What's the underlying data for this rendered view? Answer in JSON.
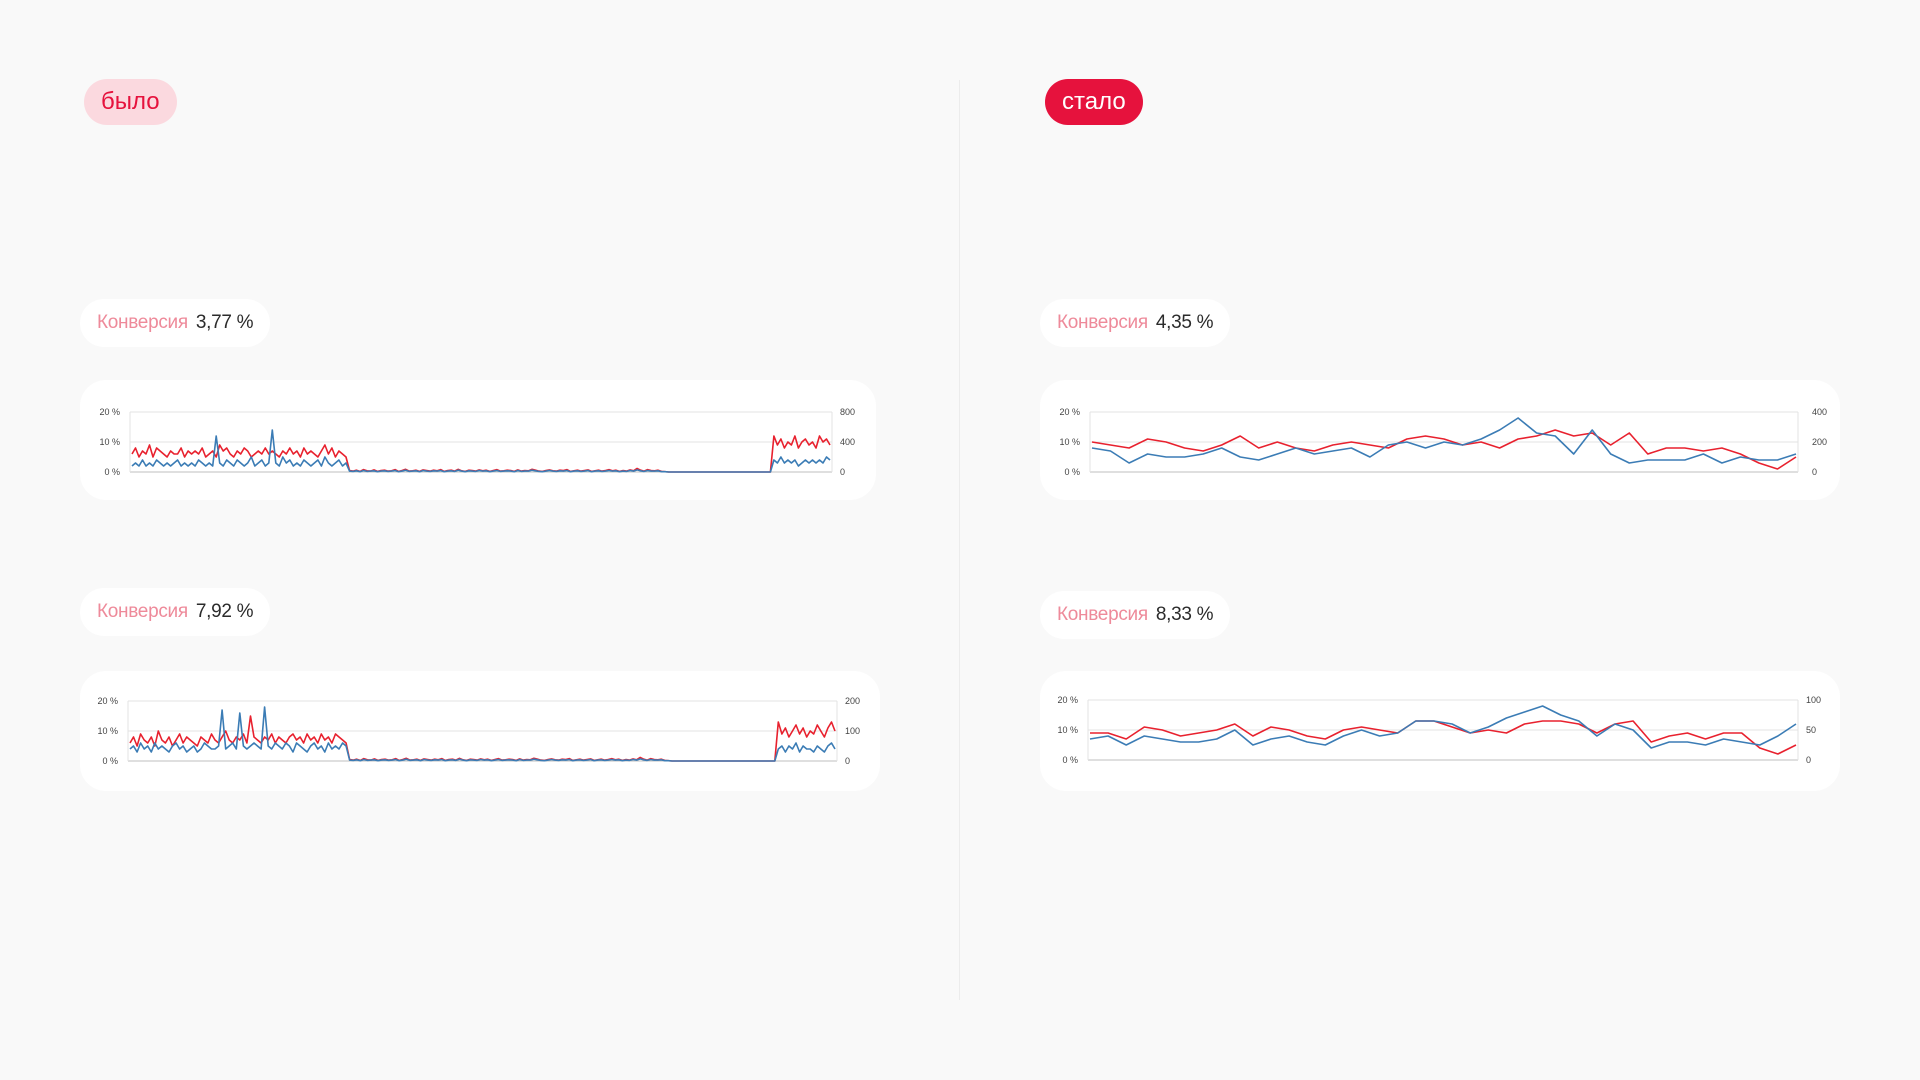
{
  "labels": {
    "before": "было",
    "after": "стало"
  },
  "colors": {
    "accent": "#e6123d",
    "accent_soft": "#fbd9df",
    "red_series": "#e8212e",
    "blue_series": "#3b7cb5",
    "label_pink": "#ee8a9a"
  },
  "panels": [
    {
      "label": "Конверсия",
      "value": "3,77 %"
    },
    {
      "label": "Конверсия",
      "value": "7,92 %"
    },
    {
      "label": "Конверсия",
      "value": "4,35 %"
    },
    {
      "label": "Конверсия",
      "value": "8,33 %"
    }
  ],
  "chart_data": [
    {
      "type": "line",
      "left_ticks": [
        "20 %",
        "10 %",
        "0 %"
      ],
      "right_ticks": [
        "800",
        "400",
        "0"
      ],
      "left_axis": [
        0,
        20
      ],
      "right_axis": [
        0,
        800
      ],
      "series": [
        {
          "axis": "left",
          "color": "#e8212e",
          "values": [
            6,
            8,
            5,
            7,
            6,
            9,
            5,
            8,
            7,
            6,
            5,
            7,
            6,
            6,
            8,
            5,
            7,
            6,
            7,
            6,
            8,
            5,
            6,
            7,
            5,
            9,
            7,
            8,
            6,
            5,
            7,
            6,
            8,
            7,
            5,
            6,
            7,
            6,
            8,
            6,
            7,
            6,
            5,
            7,
            6,
            8,
            6,
            7,
            5,
            8,
            6,
            7,
            6,
            5,
            7,
            9,
            6,
            8,
            5,
            7,
            6,
            5,
            0.5,
            0.3,
            0.6,
            0.2,
            0.8,
            0.4,
            0.3,
            0.7,
            0.2,
            0.5,
            0.6,
            0.3,
            0.4,
            0.8,
            0.2,
            0.5,
            0.9,
            0.3,
            0.4,
            0.6,
            0.2,
            0.7,
            0.5,
            0.3,
            0.6,
            0.4,
            0.8,
            0.2,
            0.5,
            0.6,
            0.3,
            0.9,
            0.4,
            0.2,
            0.6,
            0.5,
            0.3,
            0.7,
            0.4,
            0.6,
            0.2,
            0.5,
            0.8,
            0.3,
            0.4,
            0.6,
            0.5,
            0.2,
            0.7,
            0.3,
            0.5,
            0.4,
            0.9,
            0.6,
            0.3,
            0.2,
            0.5,
            0.7,
            0.4,
            0.3,
            0.6,
            0.5,
            0.8,
            0.2,
            0.4,
            0.6,
            0.3,
            0.5,
            0.7,
            0.2,
            0.4,
            0.6,
            0.3,
            0.5,
            0.8,
            0.4,
            0.6,
            0.2,
            0.5,
            0.3,
            0.7,
            0.4,
            1.2,
            0.6,
            0.3,
            0.8,
            0.5,
            0.4,
            0.6,
            0.2,
            0.1,
            0,
            0,
            0,
            0,
            0,
            0,
            0,
            0,
            0,
            0,
            0,
            0,
            0,
            0,
            0,
            0,
            0,
            0,
            0,
            0,
            0,
            0,
            0,
            0,
            0,
            0,
            0,
            0,
            0,
            0,
            12,
            9,
            11,
            8,
            10,
            9,
            12,
            8,
            10,
            11,
            9,
            10,
            8,
            12,
            10,
            11,
            9
          ]
        },
        {
          "axis": "left",
          "color": "#3b7cb5",
          "values": [
            2,
            3,
            2,
            4,
            2,
            3,
            2,
            4,
            3,
            2,
            3,
            2,
            3,
            4,
            2,
            3,
            2,
            3,
            2,
            4,
            3,
            2,
            3,
            2,
            12,
            3,
            2,
            4,
            3,
            2,
            4,
            3,
            2,
            3,
            5,
            2,
            3,
            4,
            2,
            3,
            14,
            3,
            2,
            5,
            3,
            4,
            2,
            3,
            2,
            4,
            3,
            2,
            3,
            4,
            2,
            5,
            3,
            2,
            3,
            4,
            2,
            3,
            0.3,
            0.2,
            0.4,
            0.1,
            0.5,
            0.2,
            0.3,
            0.4,
            0.1,
            0.3,
            0.4,
            0.2,
            0.3,
            0.5,
            0.1,
            0.3,
            0.6,
            0.2,
            0.3,
            0.4,
            0.1,
            0.5,
            0.3,
            0.2,
            0.4,
            0.3,
            0.5,
            0.1,
            0.3,
            0.4,
            0.2,
            0.6,
            0.3,
            0.1,
            0.4,
            0.3,
            0.2,
            0.5,
            0.3,
            0.4,
            0.1,
            0.3,
            0.5,
            0.2,
            0.3,
            0.4,
            0.3,
            0.1,
            0.5,
            0.2,
            0.3,
            0.3,
            0.6,
            0.4,
            0.2,
            0.1,
            0.3,
            0.5,
            0.3,
            0.2,
            0.4,
            0.3,
            0.5,
            0.1,
            0.3,
            0.4,
            0.2,
            0.3,
            0.5,
            0.1,
            0.3,
            0.4,
            0.2,
            0.3,
            0.5,
            0.3,
            0.4,
            0.1,
            0.3,
            0.2,
            0.5,
            0.3,
            0.7,
            0.4,
            0.2,
            0.5,
            0.3,
            0.3,
            0.4,
            0.1,
            0.1,
            0,
            0,
            0,
            0,
            0,
            0,
            0,
            0,
            0,
            0,
            0,
            0,
            0,
            0,
            0,
            0,
            0,
            0,
            0,
            0,
            0,
            0,
            0,
            0,
            0,
            0,
            0,
            0,
            0,
            0,
            4,
            3,
            5,
            3,
            4,
            3,
            4,
            2,
            3,
            4,
            3,
            4,
            3,
            4,
            3,
            5,
            4
          ]
        }
      ]
    },
    {
      "type": "line",
      "left_ticks": [
        "20 %",
        "10 %",
        "0 %"
      ],
      "right_ticks": [
        "200",
        "100",
        "0"
      ],
      "left_axis": [
        0,
        20
      ],
      "right_axis": [
        0,
        200
      ],
      "series": [
        {
          "axis": "left",
          "color": "#e8212e",
          "values": [
            6,
            8,
            5,
            9,
            7,
            6,
            8,
            5,
            10,
            7,
            6,
            8,
            5,
            7,
            9,
            6,
            8,
            7,
            6,
            5,
            8,
            7,
            6,
            9,
            7,
            6,
            8,
            10,
            7,
            6,
            8,
            7,
            9,
            6,
            15,
            8,
            7,
            6,
            8,
            7,
            9,
            6,
            8,
            7,
            6,
            8,
            9,
            7,
            8,
            6,
            9,
            7,
            8,
            6,
            9,
            7,
            8,
            6,
            9,
            8,
            7,
            6,
            0.5,
            0.3,
            0.6,
            0.2,
            0.8,
            0.4,
            0.3,
            0.7,
            0.2,
            0.5,
            0.6,
            0.3,
            0.4,
            0.8,
            0.2,
            0.5,
            0.9,
            0.3,
            0.4,
            0.6,
            0.2,
            0.7,
            0.5,
            0.3,
            0.6,
            0.4,
            0.8,
            0.2,
            0.5,
            0.6,
            0.3,
            0.9,
            0.4,
            0.2,
            0.6,
            0.5,
            0.3,
            0.7,
            0.4,
            0.6,
            0.2,
            0.5,
            0.8,
            0.3,
            0.4,
            0.6,
            0.5,
            0.2,
            0.7,
            0.3,
            0.5,
            0.4,
            0.9,
            0.6,
            0.3,
            0.2,
            0.5,
            0.7,
            0.4,
            0.3,
            0.6,
            0.5,
            0.8,
            0.2,
            0.4,
            0.6,
            0.3,
            0.5,
            0.7,
            0.2,
            0.4,
            0.6,
            0.3,
            0.5,
            0.8,
            0.4,
            0.6,
            0.2,
            0.5,
            0.3,
            0.7,
            0.4,
            1.2,
            0.6,
            0.3,
            0.8,
            0.5,
            0.4,
            0.6,
            0.2,
            0.1,
            0,
            0,
            0,
            0,
            0,
            0,
            0,
            0,
            0,
            0,
            0,
            0,
            0,
            0,
            0,
            0,
            0,
            0,
            0,
            0,
            0,
            0,
            0,
            0,
            0,
            0,
            0,
            0,
            0,
            0,
            13,
            9,
            11,
            8,
            10,
            12,
            9,
            11,
            8,
            10,
            9,
            12,
            10,
            8,
            11,
            13,
            10
          ]
        },
        {
          "axis": "left",
          "color": "#3b7cb5",
          "values": [
            4,
            5,
            3,
            6,
            4,
            5,
            3,
            6,
            4,
            5,
            4,
            3,
            5,
            6,
            4,
            5,
            3,
            4,
            5,
            3,
            4,
            6,
            5,
            4,
            4,
            5,
            17,
            4,
            5,
            6,
            4,
            16,
            5,
            4,
            5,
            6,
            5,
            4,
            18,
            5,
            4,
            6,
            5,
            4,
            6,
            5,
            3,
            6,
            5,
            4,
            3,
            5,
            6,
            4,
            5,
            3,
            6,
            4,
            5,
            4,
            6,
            5,
            0.3,
            0.2,
            0.4,
            0.1,
            0.5,
            0.2,
            0.3,
            0.4,
            0.1,
            0.3,
            0.4,
            0.2,
            0.3,
            0.5,
            0.1,
            0.3,
            0.6,
            0.2,
            0.3,
            0.4,
            0.1,
            0.5,
            0.3,
            0.2,
            0.4,
            0.3,
            0.5,
            0.1,
            0.3,
            0.4,
            0.2,
            0.6,
            0.3,
            0.1,
            0.4,
            0.3,
            0.2,
            0.5,
            0.3,
            0.4,
            0.1,
            0.3,
            0.5,
            0.2,
            0.3,
            0.4,
            0.3,
            0.1,
            0.5,
            0.2,
            0.3,
            0.3,
            0.6,
            0.4,
            0.2,
            0.1,
            0.3,
            0.5,
            0.3,
            0.2,
            0.4,
            0.3,
            0.5,
            0.1,
            0.3,
            0.4,
            0.2,
            0.3,
            0.5,
            0.1,
            0.3,
            0.4,
            0.2,
            0.3,
            0.5,
            0.3,
            0.4,
            0.1,
            0.3,
            0.2,
            0.5,
            0.3,
            0.7,
            0.4,
            0.2,
            0.5,
            0.3,
            0.3,
            0.4,
            0.1,
            0.1,
            0,
            0,
            0,
            0,
            0,
            0,
            0,
            0,
            0,
            0,
            0,
            0,
            0,
            0,
            0,
            0,
            0,
            0,
            0,
            0,
            0,
            0,
            0,
            0,
            0,
            0,
            0,
            0,
            0,
            0,
            4,
            5,
            3,
            5,
            4,
            6,
            3,
            5,
            4,
            4,
            3,
            5,
            4,
            3,
            5,
            6,
            4
          ]
        }
      ]
    },
    {
      "type": "line",
      "left_ticks": [
        "20 %",
        "10 %",
        "0 %"
      ],
      "right_ticks": [
        "400",
        "200",
        "0"
      ],
      "left_axis": [
        0,
        20
      ],
      "right_axis": [
        0,
        400
      ],
      "series": [
        {
          "axis": "left",
          "color": "#e8212e",
          "values": [
            10,
            9,
            8,
            11,
            10,
            8,
            7,
            9,
            12,
            8,
            10,
            8,
            7,
            9,
            10,
            9,
            8,
            11,
            12,
            11,
            9,
            10,
            8,
            11,
            12,
            14,
            12,
            13,
            9,
            13,
            6,
            8,
            8,
            7,
            8,
            6,
            3,
            1,
            5
          ]
        },
        {
          "axis": "left",
          "color": "#3b7cb5",
          "values": [
            8,
            7,
            3,
            6,
            5,
            5,
            6,
            8,
            5,
            4,
            6,
            8,
            6,
            7,
            8,
            5,
            9,
            10,
            8,
            10,
            9,
            11,
            14,
            18,
            13,
            12,
            6,
            14,
            6,
            3,
            4,
            4,
            4,
            6,
            3,
            5,
            4,
            4,
            6
          ]
        }
      ]
    },
    {
      "type": "line",
      "left_ticks": [
        "20 %",
        "10 %",
        "0 %"
      ],
      "right_ticks": [
        "100",
        "50",
        "0"
      ],
      "left_axis": [
        0,
        20
      ],
      "right_axis": [
        0,
        100
      ],
      "series": [
        {
          "axis": "left",
          "color": "#e8212e",
          "values": [
            9,
            9,
            7,
            11,
            10,
            8,
            9,
            10,
            12,
            8,
            11,
            10,
            8,
            7,
            10,
            11,
            10,
            9,
            13,
            13,
            11,
            9,
            10,
            9,
            12,
            13,
            13,
            12,
            9,
            12,
            13,
            6,
            8,
            9,
            7,
            9,
            9,
            4,
            2,
            5
          ]
        },
        {
          "axis": "left",
          "color": "#3b7cb5",
          "values": [
            7,
            8,
            5,
            8,
            7,
            6,
            6,
            7,
            10,
            5,
            7,
            8,
            6,
            5,
            8,
            10,
            8,
            9,
            13,
            13,
            12,
            9,
            11,
            14,
            16,
            18,
            15,
            13,
            8,
            12,
            10,
            4,
            6,
            6,
            5,
            7,
            6,
            5,
            8,
            12
          ]
        }
      ]
    }
  ]
}
